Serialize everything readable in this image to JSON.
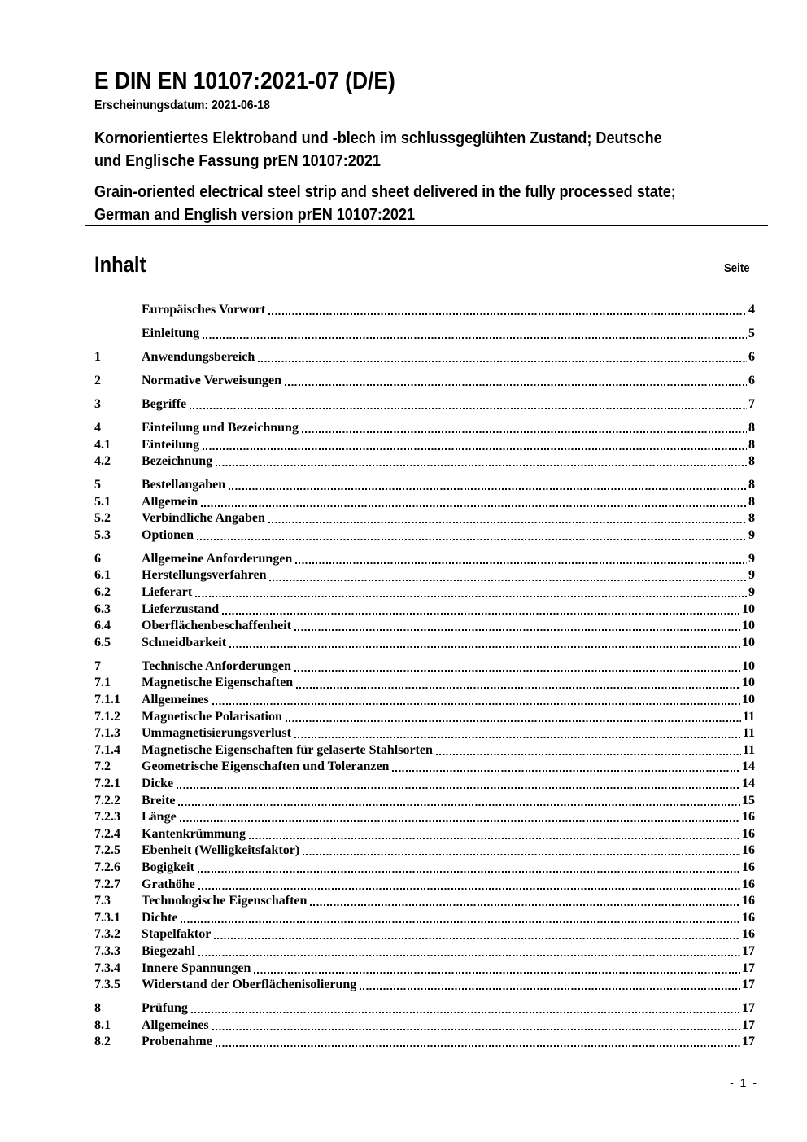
{
  "header": {
    "doc_number": "E DIN EN 10107:2021-07 (D/E)",
    "publication_date_line": "Erscheinungsdatum: 2021-06-18",
    "title_de_lines": [
      "Kornorientiertes Elektroband und -blech im schlussgeglühten Zustand; Deutsche",
      "und Englische Fassung prEN 10107:2021"
    ],
    "title_en_lines": [
      "Grain-oriented electrical steel strip and sheet delivered in the fully processed state;",
      "German and English version prEN 10107:2021"
    ]
  },
  "toc": {
    "heading": "Inhalt",
    "page_column_label": "Seite",
    "entries": [
      {
        "num": "",
        "label": "Europäisches Vorwort",
        "page": "4",
        "group": true
      },
      {
        "num": "",
        "label": "Einleitung",
        "page": "5",
        "group": true
      },
      {
        "num": "1",
        "label": "Anwendungsbereich",
        "page": "6",
        "group": true
      },
      {
        "num": "2",
        "label": "Normative Verweisungen",
        "page": "6",
        "group": true
      },
      {
        "num": "3",
        "label": "Begriffe",
        "page": "7",
        "group": true
      },
      {
        "num": "4",
        "label": "Einteilung und Bezeichnung",
        "page": "8",
        "group": true
      },
      {
        "num": "4.1",
        "label": "Einteilung",
        "page": "8",
        "group": false
      },
      {
        "num": "4.2",
        "label": "Bezeichnung",
        "page": "8",
        "group": false
      },
      {
        "num": "5",
        "label": "Bestellangaben",
        "page": "8",
        "group": true
      },
      {
        "num": "5.1",
        "label": "Allgemein",
        "page": "8",
        "group": false
      },
      {
        "num": "5.2",
        "label": "Verbindliche Angaben",
        "page": "8",
        "group": false
      },
      {
        "num": "5.3",
        "label": "Optionen",
        "page": "9",
        "group": false
      },
      {
        "num": "6",
        "label": "Allgemeine Anforderungen",
        "page": "9",
        "group": true
      },
      {
        "num": "6.1",
        "label": "Herstellungsverfahren",
        "page": "9",
        "group": false
      },
      {
        "num": "6.2",
        "label": "Lieferart",
        "page": "9",
        "group": false
      },
      {
        "num": "6.3",
        "label": "Lieferzustand",
        "page": "10",
        "group": false
      },
      {
        "num": "6.4",
        "label": "Oberflächenbeschaffenheit",
        "page": "10",
        "group": false
      },
      {
        "num": "6.5",
        "label": "Schneidbarkeit",
        "page": "10",
        "group": false
      },
      {
        "num": "7",
        "label": "Technische Anforderungen",
        "page": "10",
        "group": true
      },
      {
        "num": "7.1",
        "label": "Magnetische Eigenschaften",
        "page": "10",
        "group": false
      },
      {
        "num": "7.1.1",
        "label": "Allgemeines",
        "page": "10",
        "group": false
      },
      {
        "num": "7.1.2",
        "label": "Magnetische Polarisation",
        "page": "11",
        "group": false
      },
      {
        "num": "7.1.3",
        "label": "Ummagnetisierungsverlust",
        "page": "11",
        "group": false
      },
      {
        "num": "7.1.4",
        "label": "Magnetische Eigenschaften für gelaserte Stahlsorten",
        "page": "11",
        "group": false
      },
      {
        "num": "7.2",
        "label": "Geometrische Eigenschaften und Toleranzen",
        "page": "14",
        "group": false
      },
      {
        "num": "7.2.1",
        "label": "Dicke",
        "page": "14",
        "group": false
      },
      {
        "num": "7.2.2",
        "label": "Breite",
        "page": "15",
        "group": false
      },
      {
        "num": "7.2.3",
        "label": "Länge",
        "page": "16",
        "group": false
      },
      {
        "num": "7.2.4",
        "label": "Kantenkrümmung",
        "page": "16",
        "group": false
      },
      {
        "num": "7.2.5",
        "label": "Ebenheit (Welligkeitsfaktor)",
        "page": "16",
        "group": false
      },
      {
        "num": "7.2.6",
        "label": "Bogigkeit",
        "page": "16",
        "group": false
      },
      {
        "num": "7.2.7",
        "label": "Grathöhe",
        "page": "16",
        "group": false
      },
      {
        "num": "7.3",
        "label": "Technologische Eigenschaften",
        "page": "16",
        "group": false
      },
      {
        "num": "7.3.1",
        "label": "Dichte",
        "page": "16",
        "group": false
      },
      {
        "num": "7.3.2",
        "label": "Stapelfaktor",
        "page": "16",
        "group": false
      },
      {
        "num": "7.3.3",
        "label": "Biegezahl",
        "page": "17",
        "group": false
      },
      {
        "num": "7.3.4",
        "label": "Innere Spannungen",
        "page": "17",
        "group": false
      },
      {
        "num": "7.3.5",
        "label": "Widerstand der Oberflächenisolierung",
        "page": "17",
        "group": false
      },
      {
        "num": "8",
        "label": "Prüfung",
        "page": "17",
        "group": true
      },
      {
        "num": "8.1",
        "label": "Allgemeines",
        "page": "17",
        "group": false
      },
      {
        "num": "8.2",
        "label": "Probenahme",
        "page": "17",
        "group": false
      }
    ]
  },
  "footer": {
    "page_indicator": "- 1 -"
  }
}
